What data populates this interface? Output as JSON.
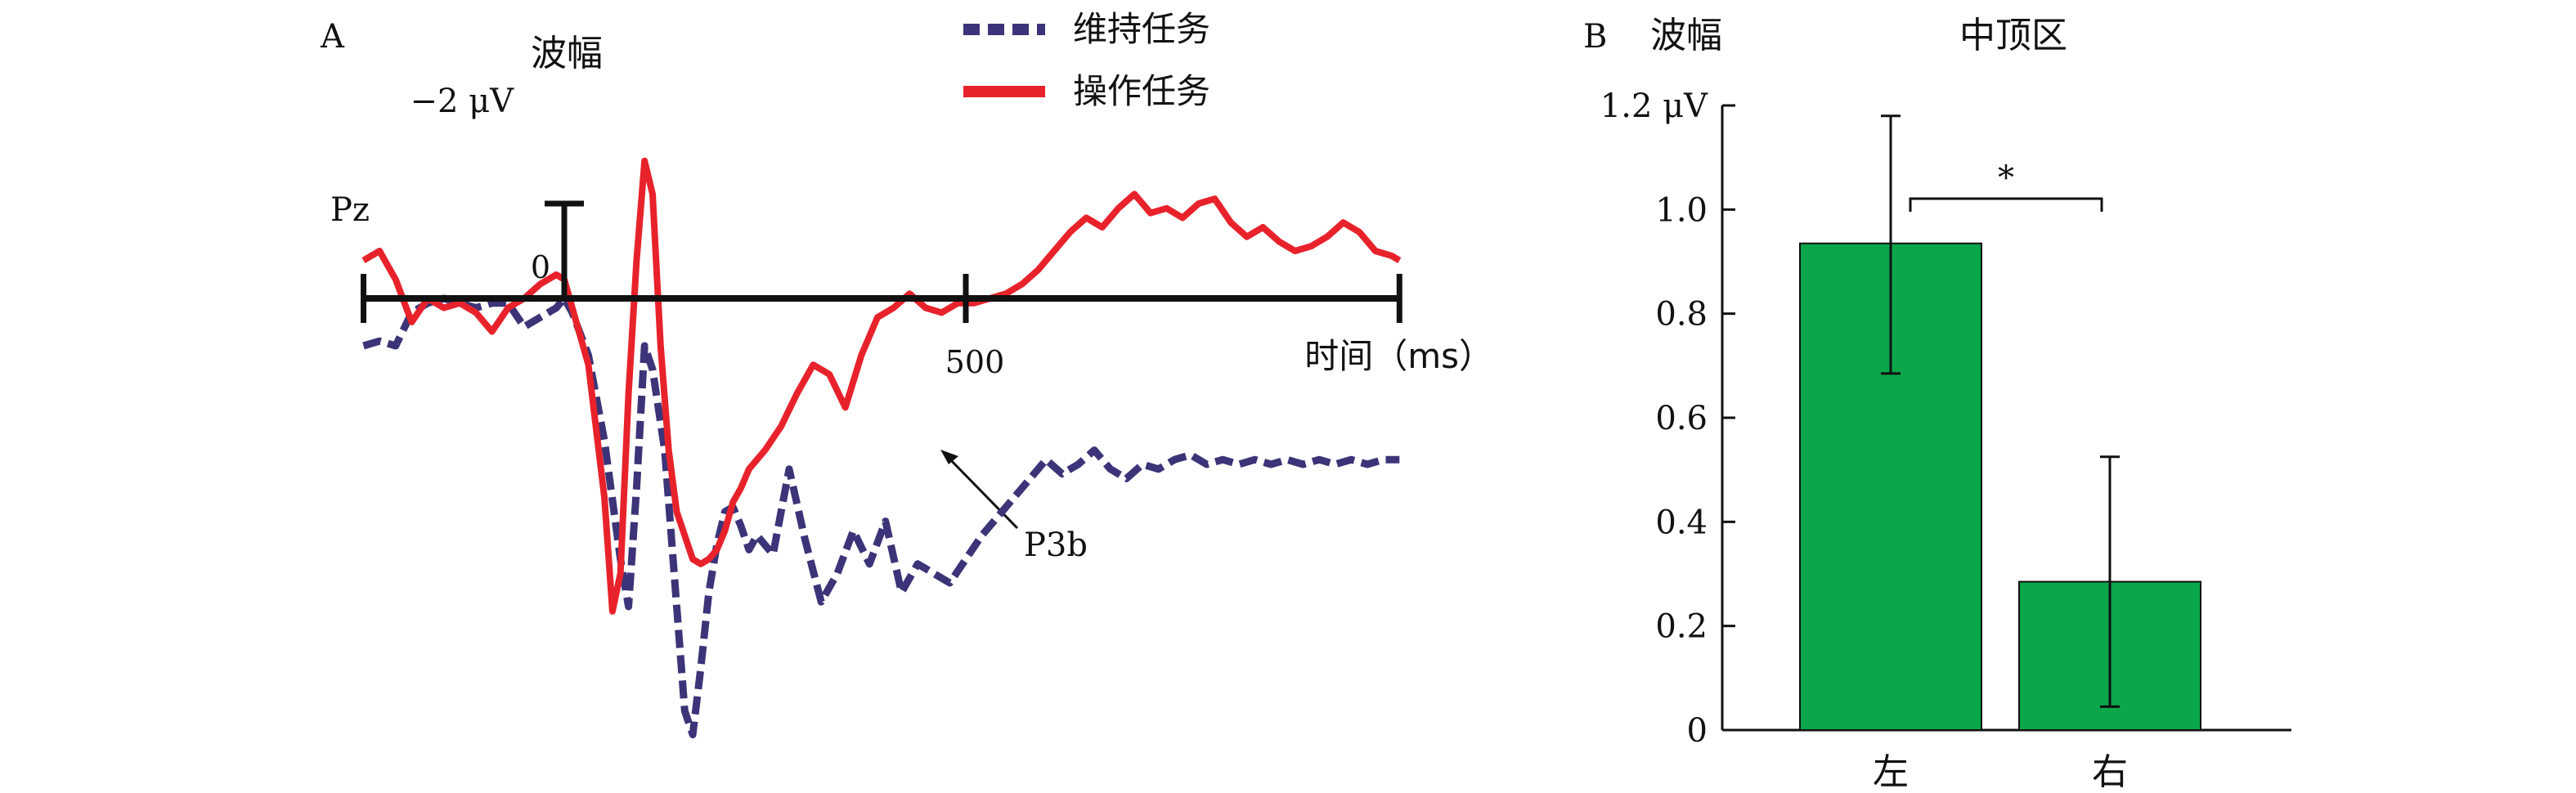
{
  "panel_a": {
    "letter": "A",
    "y_title": "波幅",
    "y_tick": "−2 μV",
    "origin": "0",
    "x_tick": "500",
    "x_title": "时间（ms）",
    "electrode": "Pz",
    "annotation": "P3b"
  },
  "panel_b": {
    "letter": "B",
    "y_title": "波幅",
    "title": "中顶区",
    "sig_marker": "*"
  },
  "colors": {
    "maintain": "#3b3478",
    "operate": "#e8222b",
    "bar": "#0aa64a"
  },
  "chart_data": [
    {
      "type": "line",
      "x_unit": "ms",
      "y_unit": "μV",
      "y_inverted": true,
      "xlim": [
        -250,
        1040
      ],
      "x_ticks": [
        0,
        500
      ],
      "y_ticks": [
        -2
      ],
      "series": [
        {
          "name": "维持任务",
          "style": "dashed",
          "color": "#3b3478",
          "x": [
            -250,
            -230,
            -210,
            -190,
            -170,
            -150,
            -130,
            -110,
            -90,
            -70,
            -50,
            -30,
            -10,
            0,
            10,
            30,
            50,
            70,
            80,
            90,
            100,
            110,
            125,
            140,
            150,
            160,
            170,
            180,
            190,
            200,
            210,
            220,
            230,
            240,
            260,
            280,
            300,
            320,
            340,
            360,
            380,
            400,
            420,
            440,
            460,
            480,
            500,
            520,
            540,
            560,
            580,
            600,
            620,
            640,
            660,
            680,
            700,
            720,
            740,
            760,
            780,
            800,
            820,
            840,
            860,
            880,
            900,
            920,
            940,
            960,
            980,
            1000,
            1020,
            1040
          ],
          "y": [
            -1.0,
            -0.9,
            -1.0,
            -0.3,
            -0.1,
            0.0,
            -0.1,
            -0.2,
            -0.1,
            -0.1,
            -0.6,
            -0.4,
            -0.2,
            0.0,
            -0.3,
            -1.2,
            -3.0,
            -5.5,
            -6.5,
            -4.0,
            -1.0,
            -1.5,
            -3.2,
            -6.5,
            -8.7,
            -9.2,
            -7.8,
            -6.2,
            -5.2,
            -4.5,
            -4.4,
            -4.8,
            -5.3,
            -5.0,
            -5.4,
            -3.6,
            -5.1,
            -6.4,
            -5.8,
            -4.9,
            -5.6,
            -4.7,
            -6.2,
            -5.6,
            -5.8,
            -6.0,
            -5.5,
            -5.0,
            -4.6,
            -4.2,
            -3.8,
            -3.4,
            -3.7,
            -3.5,
            -3.2,
            -3.6,
            -3.8,
            -3.5,
            -3.6,
            -3.4,
            -3.3,
            -3.5,
            -3.4,
            -3.5,
            -3.4,
            -3.5,
            -3.4,
            -3.5,
            -3.4,
            -3.5,
            -3.4,
            -3.5,
            -3.4,
            -3.4
          ]
        },
        {
          "name": "操作任务",
          "style": "solid",
          "color": "#e8222b",
          "x": [
            -250,
            -230,
            -210,
            -190,
            -170,
            -150,
            -130,
            -110,
            -90,
            -70,
            -50,
            -30,
            -10,
            0,
            10,
            30,
            50,
            60,
            70,
            80,
            90,
            100,
            110,
            120,
            130,
            140,
            150,
            160,
            170,
            180,
            190,
            200,
            210,
            220,
            230,
            250,
            270,
            290,
            310,
            330,
            350,
            370,
            390,
            410,
            430,
            450,
            470,
            490,
            510,
            530,
            550,
            570,
            590,
            610,
            630,
            650,
            670,
            690,
            710,
            730,
            750,
            770,
            790,
            810,
            830,
            850,
            870,
            890,
            910,
            930,
            950,
            970,
            990,
            1010,
            1030,
            1040
          ],
          "y": [
            0.8,
            1.0,
            0.4,
            -0.5,
            0.0,
            -0.2,
            -0.1,
            -0.3,
            -0.7,
            -0.2,
            0.0,
            0.3,
            0.5,
            0.4,
            -0.2,
            -1.4,
            -4.2,
            -6.6,
            -5.8,
            -2.0,
            0.8,
            2.9,
            2.2,
            -1.0,
            -3.2,
            -4.5,
            -5.0,
            -5.5,
            -5.6,
            -5.5,
            -5.3,
            -4.9,
            -4.3,
            -4.0,
            -3.6,
            -3.2,
            -2.7,
            -2.0,
            -1.4,
            -1.6,
            -2.3,
            -1.2,
            -0.4,
            -0.2,
            0.1,
            -0.2,
            -0.3,
            -0.1,
            -0.1,
            0.0,
            0.1,
            0.3,
            0.6,
            1.0,
            1.4,
            1.7,
            1.5,
            1.9,
            2.2,
            1.8,
            1.9,
            1.7,
            2.0,
            2.1,
            1.6,
            1.3,
            1.5,
            1.2,
            1.0,
            1.1,
            1.3,
            1.6,
            1.4,
            1.0,
            0.9,
            0.8
          ]
        }
      ]
    },
    {
      "type": "bar",
      "categories": [
        "左",
        "右"
      ],
      "values": [
        0.935,
        0.285
      ],
      "error_high": [
        1.18,
        0.525
      ],
      "error_low": [
        0.685,
        0.045
      ],
      "ylim": [
        0,
        1.2
      ],
      "y_ticks": [
        "0",
        "0.2",
        "0.4",
        "0.6",
        "0.8",
        "1.0",
        "1.2 μV"
      ],
      "significance": {
        "between": [
          "左",
          "右"
        ],
        "label": "*"
      }
    }
  ]
}
